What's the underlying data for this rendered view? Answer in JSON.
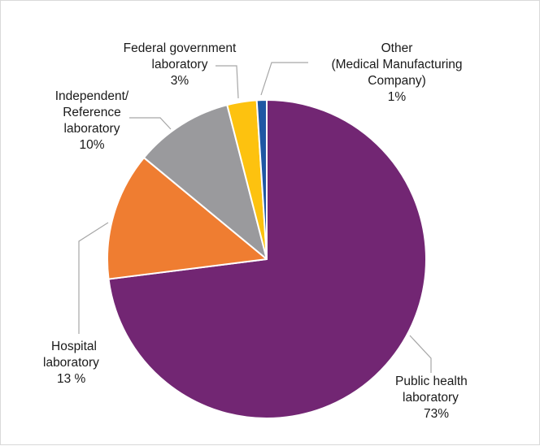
{
  "chart_data": {
    "type": "pie",
    "title": "",
    "slices": [
      {
        "label_lines": [
          "Public health",
          "laboratory"
        ],
        "value_text": "73%",
        "value": 73,
        "color": "#722673"
      },
      {
        "label_lines": [
          "Hospital",
          "laboratory"
        ],
        "value_text": "13 %",
        "value": 13,
        "color": "#ef7d31"
      },
      {
        "label_lines": [
          "Independent/",
          "Reference",
          "laboratory"
        ],
        "value_text": "10%",
        "value": 10,
        "color": "#9a9a9d"
      },
      {
        "label_lines": [
          "Federal government",
          "laboratory"
        ],
        "value_text": "3%",
        "value": 3,
        "color": "#fdc20f"
      },
      {
        "label_lines": [
          "Other",
          "(Medical Manufacturing",
          "Company)"
        ],
        "value_text": "1%",
        "value": 1,
        "color": "#1f57a4"
      }
    ]
  }
}
